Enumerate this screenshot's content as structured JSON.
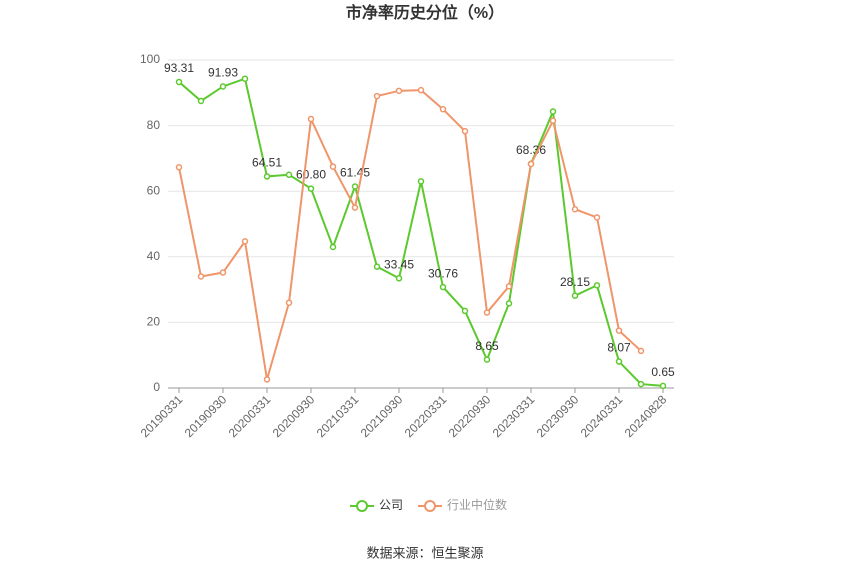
{
  "chart_data": {
    "type": "line",
    "title": "市净率历史分位（%）",
    "source": "数据来源：恒生聚源",
    "categories": [
      "20190331",
      null,
      "20190930",
      null,
      "20200331",
      null,
      "20200930",
      null,
      "20210331",
      null,
      "20210930",
      null,
      "20220331",
      null,
      "20220930",
      null,
      "20230331",
      null,
      "20230930",
      null,
      "20240331",
      null,
      "20240828"
    ],
    "series": [
      {
        "name": "公司",
        "color": "#5cc92e",
        "values": [
          93.31,
          87.5,
          91.93,
          94.3,
          64.51,
          65,
          60.8,
          43,
          61.45,
          37,
          33.45,
          63,
          30.76,
          23.5,
          8.65,
          25.8,
          68.36,
          84.3,
          28.15,
          31.3,
          8.07,
          1.2,
          0.65
        ],
        "value_labels": [
          "93.31",
          null,
          "91.93",
          null,
          "64.51",
          null,
          "60.80",
          null,
          "61.45",
          null,
          "33.45",
          null,
          "30.76",
          null,
          "8.65",
          null,
          "68.36",
          null,
          "28.15",
          null,
          "8.07",
          null,
          "0.65"
        ]
      },
      {
        "name": "行业中位数",
        "color": "#f0956a",
        "values": [
          67.3,
          34,
          35.2,
          44.7,
          2.6,
          26,
          82,
          67.5,
          55,
          89,
          90.6,
          90.8,
          85,
          78.3,
          23,
          31,
          68.3,
          81.5,
          54.5,
          52,
          17.5,
          11.3,
          null
        ]
      }
    ],
    "ylim": [
      0,
      100
    ],
    "yticks": [
      0,
      20,
      40,
      60,
      80,
      100
    ],
    "grid": true,
    "legend": "bottom"
  }
}
